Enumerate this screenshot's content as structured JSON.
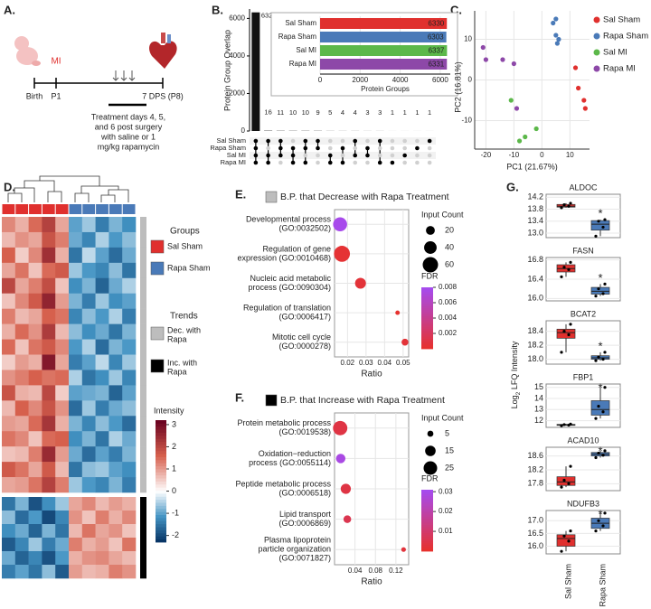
{
  "panel_labels": [
    "A.",
    "B.",
    "C.",
    "D.",
    "E.",
    "F.",
    "G."
  ],
  "diagram": {
    "event": "MI",
    "timeline": [
      "Birth",
      "P1",
      "7 DPS (P8)"
    ],
    "treatment": [
      "Treatment days 4, 5,",
      "and 6 post surgery",
      "with saline or 1",
      "mg/kg rapamycin"
    ]
  },
  "chart_data": [
    {
      "type": "upset",
      "ylabel": "Protein Group Overlap",
      "values": [
        6322,
        16,
        11,
        10,
        10,
        9,
        5,
        4,
        4,
        3,
        3,
        1,
        1,
        1,
        1
      ],
      "ylim": [
        0,
        6500
      ],
      "yticks": [
        0,
        2000,
        4000,
        6000
      ],
      "sets": [
        "Sal Sham",
        "Rapa Sham",
        "Sal MI",
        "Rapa MI"
      ],
      "membership": [
        [
          0,
          1,
          2,
          3
        ],
        [
          0,
          2,
          3
        ],
        [
          0,
          1,
          2
        ],
        [
          1,
          2,
          3
        ],
        [
          0,
          1,
          3
        ],
        [
          0,
          1
        ],
        [
          2,
          3
        ],
        [
          1,
          3
        ],
        [
          0,
          2
        ],
        [
          1,
          2
        ],
        [
          0,
          3
        ],
        [
          3
        ],
        [
          2
        ],
        [
          1
        ],
        [
          0
        ]
      ],
      "color": "#111111"
    },
    {
      "type": "hbar",
      "xlabel": "Protein Groups",
      "categories": [
        "Sal Sham",
        "Rapa Sham",
        "Sal MI",
        "Rapa MI"
      ],
      "values": [
        6330,
        6303,
        6337,
        6331
      ],
      "colors": [
        "#e0302e",
        "#4a7ab8",
        "#5cb84a",
        "#8d48a8"
      ],
      "xlim": [
        0,
        6500
      ],
      "xticks": [
        0,
        2000,
        4000,
        6000
      ]
    },
    {
      "type": "scatter",
      "xlabel": "PC1 (21.67%)",
      "ylabel": "PC2 (16.81%)",
      "xlim": [
        -24,
        17
      ],
      "ylim": [
        -17,
        17
      ],
      "xticks": [
        -20,
        -10,
        0,
        10
      ],
      "yticks": [
        -10,
        0,
        10
      ],
      "grid": true,
      "series": [
        {
          "name": "Sal Sham",
          "color": "#e0302e",
          "x": [
            12,
            13,
            15,
            15.5
          ],
          "y": [
            3,
            -2,
            -5,
            -7
          ]
        },
        {
          "name": "Rapa Sham",
          "color": "#4a7ab8",
          "x": [
            4,
            5,
            5,
            6,
            5.5
          ],
          "y": [
            14,
            15,
            11,
            10,
            9
          ]
        },
        {
          "name": "Sal MI",
          "color": "#5cb84a",
          "x": [
            -11,
            -6,
            -8,
            -2
          ],
          "y": [
            -5,
            -14,
            -15,
            -12
          ]
        },
        {
          "name": "Rapa MI",
          "color": "#8d48a8",
          "x": [
            -21,
            -20,
            -14,
            -10,
            -9
          ],
          "y": [
            8,
            5,
            5,
            4,
            -7
          ]
        }
      ]
    },
    {
      "type": "heatmap",
      "groups_title": "Groups",
      "trends_title": "Trends",
      "intensity_title": "Intensity",
      "group_names": [
        "Sal Sham",
        "Rapa Sham"
      ],
      "group_colors": [
        "#e0302e",
        "#4a7ab8"
      ],
      "column_group": [
        0,
        0,
        0,
        0,
        0,
        1,
        1,
        1,
        1,
        1
      ],
      "row_trend_names": [
        [
          "Dec. with",
          "Rapa"
        ],
        [
          "Inc. with",
          "Rapa"
        ]
      ],
      "row_trend_colors": [
        "#bdbdbd",
        "#000000"
      ],
      "row_trend": [
        0,
        0,
        0,
        0,
        0,
        0,
        0,
        0,
        0,
        0,
        0,
        0,
        0,
        0,
        0,
        0,
        0,
        0,
        1,
        1,
        1,
        1,
        1,
        1
      ],
      "zlim": [
        -2.3,
        3.2
      ],
      "zticks": [
        3,
        2,
        1,
        0,
        -1,
        -2
      ],
      "values": [
        [
          1.2,
          0.8,
          1.5,
          2.1,
          0.9,
          -1.0,
          -0.6,
          -1.4,
          -0.8,
          -1.2
        ],
        [
          0.7,
          1.1,
          0.9,
          1.8,
          1.3,
          -0.9,
          -1.3,
          -0.5,
          -1.1,
          -0.7
        ],
        [
          1.6,
          0.5,
          1.2,
          2.4,
          0.8,
          -1.5,
          -0.4,
          -1.0,
          -1.6,
          -0.9
        ],
        [
          0.9,
          1.4,
          0.6,
          1.5,
          1.7,
          -0.6,
          -1.1,
          -1.3,
          -0.7,
          -1.5
        ],
        [
          2.0,
          0.9,
          1.3,
          1.9,
          0.6,
          -1.2,
          -0.8,
          -1.7,
          -0.9,
          -0.5
        ],
        [
          0.6,
          1.2,
          1.7,
          2.6,
          1.0,
          -0.8,
          -1.4,
          -0.6,
          -1.2,
          -1.0
        ],
        [
          1.3,
          0.7,
          0.9,
          1.6,
          1.4,
          -1.3,
          -0.7,
          -1.1,
          -0.5,
          -1.4
        ],
        [
          0.8,
          1.5,
          1.1,
          2.2,
          0.7,
          -0.7,
          -1.2,
          -0.9,
          -1.5,
          -0.8
        ],
        [
          1.5,
          0.6,
          1.4,
          1.7,
          1.2,
          -1.1,
          -0.5,
          -1.6,
          -0.8,
          -1.1
        ],
        [
          0.5,
          1.0,
          0.8,
          2.8,
          0.9,
          -1.4,
          -1.0,
          -0.4,
          -1.3,
          -0.6
        ],
        [
          1.1,
          1.3,
          1.6,
          1.4,
          1.5,
          -0.5,
          -1.5,
          -1.2,
          -0.6,
          -1.3
        ],
        [
          1.8,
          0.8,
          0.7,
          2.0,
          0.5,
          -1.0,
          -0.9,
          -0.8,
          -1.7,
          -1.0
        ],
        [
          0.7,
          1.6,
          1.2,
          1.8,
          1.1,
          -1.6,
          -0.6,
          -1.4,
          -0.9,
          -0.7
        ],
        [
          1.0,
          0.9,
          1.5,
          2.3,
          0.8,
          -0.8,
          -1.3,
          -0.7,
          -1.1,
          -1.6
        ],
        [
          1.4,
          1.2,
          0.6,
          1.5,
          1.6,
          -1.2,
          -0.8,
          -1.5,
          -0.5,
          -0.9
        ],
        [
          0.6,
          0.7,
          1.3,
          2.5,
          1.0,
          -0.9,
          -1.6,
          -1.0,
          -1.4,
          -0.8
        ],
        [
          1.7,
          1.4,
          0.9,
          1.7,
          0.7,
          -1.5,
          -0.7,
          -0.6,
          -1.0,
          -1.2
        ],
        [
          0.9,
          1.0,
          1.4,
          2.1,
          1.3,
          -0.6,
          -1.1,
          -1.3,
          -0.8,
          -1.4
        ],
        [
          -1.5,
          -0.8,
          -1.9,
          -1.2,
          -0.6,
          0.9,
          1.2,
          0.7,
          1.0,
          0.8
        ],
        [
          -0.7,
          -1.6,
          -1.1,
          -2.0,
          -1.3,
          1.1,
          0.6,
          1.3,
          0.8,
          1.2
        ],
        [
          -1.2,
          -0.9,
          -1.7,
          -0.8,
          -1.5,
          0.7,
          1.4,
          0.9,
          1.1,
          0.6
        ],
        [
          -1.8,
          -1.3,
          -0.6,
          -1.4,
          -0.9,
          1.3,
          0.8,
          1.0,
          0.6,
          1.4
        ],
        [
          -0.9,
          -1.7,
          -1.3,
          -1.9,
          -1.1,
          0.8,
          1.1,
          1.2,
          0.9,
          0.7
        ],
        [
          -1.4,
          -1.0,
          -1.5,
          -0.7,
          -1.8,
          1.0,
          0.7,
          0.8,
          1.3,
          1.1
        ]
      ]
    },
    {
      "type": "dot",
      "title": "B.P. that Decrease with Rapa Treatment",
      "marker_color": "#bdbdbd",
      "xlabel": "Ratio",
      "categories": [
        [
          "Developmental process",
          "(GO:0032502)"
        ],
        [
          "Regulation of gene",
          "expression (GO:0010468)"
        ],
        [
          "Nucleic acid metabolic",
          "process (GO:0090304)"
        ],
        [
          "Regulation of translation",
          "(GO:0006417)"
        ],
        [
          "Mitotic cell cycle",
          "(GO:0000278)"
        ]
      ],
      "x": [
        0.016,
        0.017,
        0.027,
        0.047,
        0.051
      ],
      "size": [
        50,
        65,
        30,
        5,
        12
      ],
      "fdr": [
        0.0078,
        0.0004,
        0.0006,
        0.0002,
        0.0006
      ],
      "xlim": [
        0.013,
        0.053
      ],
      "xticks": [
        0.02,
        0.03,
        0.04,
        0.05
      ],
      "size_title": "Input Count",
      "size_ticks": [
        20,
        40,
        60
      ],
      "color_title": "FDR",
      "clim": [
        0,
        0.008
      ],
      "cticks": [
        0.008,
        0.006,
        0.004,
        0.002
      ]
    },
    {
      "type": "dot",
      "title": "B.P. that Increase with Rapa Treatment",
      "marker_color": "#000000",
      "xlabel": "Ratio",
      "categories": [
        [
          "Protein metabolic process",
          "(GO:0019538)"
        ],
        [
          "Oxidation−reduction",
          "process (GO:0055114)"
        ],
        [
          "Peptide metabolic process",
          "(GO:0006518)"
        ],
        [
          "Lipid transport",
          "(GO:0006869)"
        ],
        [
          "Plasma lipoprotein",
          "particle organization",
          "(GO:0071827)"
        ]
      ],
      "x": [
        0.011,
        0.012,
        0.022,
        0.025,
        0.135
      ],
      "size": [
        28,
        12,
        14,
        8,
        3
      ],
      "fdr": [
        0.004,
        0.029,
        0.004,
        0.006,
        0.003
      ],
      "xlim": [
        0,
        0.145
      ],
      "xticks": [
        0.04,
        0.08,
        0.12
      ],
      "size_title": "Input Count",
      "size_ticks": [
        5,
        15,
        25
      ],
      "color_title": "FDR",
      "clim": [
        0,
        0.031
      ],
      "cticks": [
        0.03,
        0.02,
        0.01
      ]
    },
    {
      "type": "boxgrid",
      "ylabel": {
        "base": "Log",
        "sub": "2",
        "rest": " LFQ Intensity"
      },
      "categories": [
        "Sal Sham",
        "Rapa Sham"
      ],
      "colors": [
        "#e0302e",
        "#4a7ab8"
      ],
      "panels": [
        {
          "title": "ALDOC",
          "ylim": [
            12.85,
            14.3
          ],
          "yticks": [
            14.2,
            13.8,
            13.4,
            {
              "value": 13,
              "label": "13.0"
            }
          ],
          "annotation": "*",
          "boxes": [
            {
              "min": 13.85,
              "q1": 13.87,
              "median": 13.9,
              "q3": 13.96,
              "max": 14.0,
              "points": [
                13.85,
                13.9,
                13.95,
                14.0
              ]
            },
            {
              "min": 12.9,
              "q1": 13.1,
              "median": 13.3,
              "q3": 13.42,
              "max": 13.45,
              "points": [
                12.9,
                13.2,
                13.4,
                13.45
              ]
            }
          ]
        },
        {
          "title": "FASN",
          "ylim": [
            15.95,
            16.85
          ],
          "yticks": [
            16.8,
            16.4,
            {
              "value": 16,
              "label": "16.0"
            }
          ],
          "annotation": "*",
          "boxes": [
            {
              "min": 16.45,
              "q1": 16.55,
              "median": 16.62,
              "q3": 16.7,
              "max": 16.75,
              "points": [
                16.45,
                16.6,
                16.65,
                16.75
              ]
            },
            {
              "min": 16.05,
              "q1": 16.09,
              "median": 16.15,
              "q3": 16.23,
              "max": 16.3,
              "points": [
                16.05,
                16.1,
                16.2,
                16.3
              ]
            }
          ]
        },
        {
          "title": "BCAT2",
          "ylim": [
            17.93,
            18.55
          ],
          "yticks": [
            18.4,
            18.2,
            {
              "value": 18,
              "label": "18.0"
            }
          ],
          "annotation": "*",
          "boxes": [
            {
              "min": 18.1,
              "q1": 18.3,
              "median": 18.38,
              "q3": 18.43,
              "max": 18.5,
              "points": [
                18.1,
                18.35,
                18.4,
                18.5
              ]
            },
            {
              "min": 17.98,
              "q1": 18.0,
              "median": 18.02,
              "q3": 18.05,
              "max": 18.1,
              "points": [
                17.98,
                18.0,
                18.03,
                18.1
              ]
            }
          ]
        },
        {
          "title": "FBP1",
          "ylim": [
            11.4,
            15.3
          ],
          "yticks": [
            15,
            14,
            13,
            12
          ],
          "annotation": "*",
          "boxes": [
            {
              "min": 11.55,
              "q1": 11.58,
              "median": 11.62,
              "q3": 11.67,
              "max": 11.7,
              "points": [
                11.55,
                11.6,
                11.65,
                11.7
              ]
            },
            {
              "min": 12.2,
              "q1": 12.5,
              "median": 13.0,
              "q3": 13.8,
              "max": 15.0,
              "points": [
                12.2,
                12.8,
                13.3,
                15.0
              ]
            }
          ]
        },
        {
          "title": "ACAD10",
          "ylim": [
            17.6,
            18.85
          ],
          "yticks": [
            18.6,
            18.2,
            17.8
          ],
          "annotation": "*",
          "boxes": [
            {
              "min": 17.7,
              "q1": 17.75,
              "median": 17.85,
              "q3": 18.0,
              "max": 18.3,
              "points": [
                17.7,
                17.8,
                17.9,
                18.3
              ]
            },
            {
              "min": 18.55,
              "q1": 18.6,
              "median": 18.65,
              "q3": 18.7,
              "max": 18.75,
              "points": [
                18.55,
                18.62,
                18.68,
                18.75
              ]
            }
          ]
        },
        {
          "title": "NDUFB3",
          "ylim": [
            15.7,
            17.4
          ],
          "yticks": [
            {
              "value": 17,
              "label": "17.0"
            },
            16.5,
            {
              "value": 16,
              "label": "16.0"
            }
          ],
          "annotation": "*",
          "boxes": [
            {
              "min": 15.8,
              "q1": 16.0,
              "median": 16.3,
              "q3": 16.45,
              "max": 16.6,
              "points": [
                15.8,
                16.2,
                16.4,
                16.6
              ]
            },
            {
              "min": 16.6,
              "q1": 16.7,
              "median": 16.9,
              "q3": 17.1,
              "max": 17.3,
              "points": [
                16.6,
                16.8,
                17.0,
                17.3
              ]
            }
          ]
        }
      ]
    }
  ]
}
